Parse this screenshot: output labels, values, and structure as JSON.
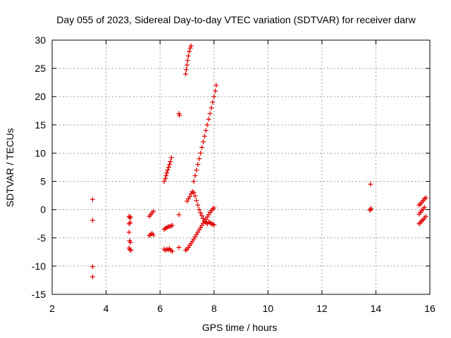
{
  "chart_data": {
    "type": "scatter",
    "title": "Day 055 of 2023, Sidereal Day-to-day VTEC variation (SDTVAR) for receiver darw",
    "xlabel": "GPS time / hours",
    "ylabel": "SDTVAR / TECUs",
    "xlim": [
      2,
      16
    ],
    "ylim": [
      -15,
      30
    ],
    "xticks": [
      2,
      4,
      6,
      8,
      10,
      12,
      14,
      16
    ],
    "yticks": [
      -15,
      -10,
      -5,
      0,
      5,
      10,
      15,
      20,
      25,
      30
    ],
    "grid": true,
    "marker": "plus",
    "marker_color": "#e00000",
    "series": [
      {
        "name": "SDTVAR",
        "points": [
          [
            3.5,
            1.8
          ],
          [
            3.5,
            -1.9
          ],
          [
            3.5,
            -10.1
          ],
          [
            3.5,
            -11.9
          ],
          [
            4.85,
            -1.2
          ],
          [
            4.88,
            -1.5
          ],
          [
            4.9,
            -1.3
          ],
          [
            4.85,
            -2.5
          ],
          [
            4.9,
            -2.3
          ],
          [
            4.85,
            -4.0
          ],
          [
            4.87,
            -5.5
          ],
          [
            4.9,
            -5.8
          ],
          [
            4.85,
            -6.8
          ],
          [
            4.88,
            -7.1
          ],
          [
            4.92,
            -7.2
          ],
          [
            5.6,
            -1.2
          ],
          [
            5.65,
            -0.9
          ],
          [
            5.7,
            -0.6
          ],
          [
            5.75,
            -0.3
          ],
          [
            5.6,
            -4.6
          ],
          [
            5.65,
            -4.4
          ],
          [
            5.7,
            -4.2
          ],
          [
            5.75,
            -4.5
          ],
          [
            6.15,
            5.0
          ],
          [
            6.2,
            5.5
          ],
          [
            6.22,
            6.0
          ],
          [
            6.25,
            6.5
          ],
          [
            6.28,
            7.0
          ],
          [
            6.32,
            7.5
          ],
          [
            6.35,
            8.0
          ],
          [
            6.38,
            8.5
          ],
          [
            6.42,
            9.2
          ],
          [
            6.15,
            -3.5
          ],
          [
            6.2,
            -3.3
          ],
          [
            6.25,
            -3.2
          ],
          [
            6.3,
            -3.0
          ],
          [
            6.35,
            -3.0
          ],
          [
            6.4,
            -2.9
          ],
          [
            6.45,
            -2.8
          ],
          [
            6.15,
            -7.0
          ],
          [
            6.2,
            -7.2
          ],
          [
            6.25,
            -7.0
          ],
          [
            6.3,
            -7.1
          ],
          [
            6.35,
            -6.9
          ],
          [
            6.4,
            -7.2
          ],
          [
            6.45,
            -7.4
          ],
          [
            6.7,
            17.0
          ],
          [
            6.72,
            16.7
          ],
          [
            6.7,
            -0.9
          ],
          [
            6.7,
            -6.7
          ],
          [
            6.95,
            24.0
          ],
          [
            6.97,
            24.8
          ],
          [
            7.0,
            25.6
          ],
          [
            7.02,
            26.4
          ],
          [
            7.05,
            27.2
          ],
          [
            7.08,
            28.0
          ],
          [
            7.12,
            28.6
          ],
          [
            7.15,
            29.0
          ],
          [
            6.95,
            -7.2
          ],
          [
            7.0,
            -7.0
          ],
          [
            7.05,
            -6.7
          ],
          [
            7.1,
            -6.3
          ],
          [
            7.15,
            -6.0
          ],
          [
            7.2,
            -5.6
          ],
          [
            7.25,
            -5.2
          ],
          [
            7.3,
            -4.8
          ],
          [
            7.35,
            -4.4
          ],
          [
            7.4,
            -4.0
          ],
          [
            7.45,
            -3.6
          ],
          [
            7.5,
            -3.2
          ],
          [
            7.55,
            -2.8
          ],
          [
            7.6,
            -2.4
          ],
          [
            7.65,
            -2.1
          ],
          [
            7.7,
            -1.7
          ],
          [
            7.75,
            -1.3
          ],
          [
            7.8,
            -0.9
          ],
          [
            7.85,
            -0.5
          ],
          [
            7.9,
            -0.2
          ],
          [
            7.95,
            0.1
          ],
          [
            8.0,
            0.3
          ],
          [
            7.0,
            1.5
          ],
          [
            7.05,
            1.9
          ],
          [
            7.1,
            2.3
          ],
          [
            7.15,
            2.8
          ],
          [
            7.2,
            3.2
          ],
          [
            7.25,
            3.0
          ],
          [
            7.3,
            2.4
          ],
          [
            7.35,
            1.6
          ],
          [
            7.4,
            0.8
          ],
          [
            7.45,
            0.0
          ],
          [
            7.5,
            -0.6
          ],
          [
            7.55,
            -1.1
          ],
          [
            7.6,
            -1.6
          ],
          [
            7.65,
            -2.0
          ],
          [
            7.7,
            -2.3
          ],
          [
            7.75,
            -2.5
          ],
          [
            7.8,
            -2.2
          ],
          [
            7.85,
            -2.3
          ],
          [
            7.9,
            -2.5
          ],
          [
            7.95,
            -2.6
          ],
          [
            8.0,
            -2.7
          ],
          [
            7.25,
            5.0
          ],
          [
            7.3,
            6.0
          ],
          [
            7.35,
            7.0
          ],
          [
            7.4,
            8.0
          ],
          [
            7.45,
            9.0
          ],
          [
            7.5,
            10.0
          ],
          [
            7.55,
            11.0
          ],
          [
            7.6,
            12.0
          ],
          [
            7.65,
            13.0
          ],
          [
            7.7,
            14.0
          ],
          [
            7.75,
            15.0
          ],
          [
            7.8,
            16.0
          ],
          [
            7.85,
            17.0
          ],
          [
            7.9,
            18.0
          ],
          [
            7.95,
            19.0
          ],
          [
            8.0,
            20.0
          ],
          [
            8.05,
            21.0
          ],
          [
            8.08,
            22.0
          ],
          [
            13.8,
            4.5
          ],
          [
            13.8,
            0.0
          ],
          [
            13.82,
            0.2
          ],
          [
            13.78,
            -0.1
          ],
          [
            15.6,
            0.8
          ],
          [
            15.65,
            1.0
          ],
          [
            15.7,
            1.3
          ],
          [
            15.75,
            1.6
          ],
          [
            15.8,
            1.9
          ],
          [
            15.85,
            2.1
          ],
          [
            15.6,
            -0.8
          ],
          [
            15.65,
            -0.5
          ],
          [
            15.7,
            -0.2
          ],
          [
            15.75,
            0.1
          ],
          [
            15.8,
            0.4
          ],
          [
            15.6,
            -2.5
          ],
          [
            15.65,
            -2.3
          ],
          [
            15.7,
            -2.0
          ],
          [
            15.75,
            -1.8
          ],
          [
            15.8,
            -1.5
          ],
          [
            15.85,
            -1.2
          ]
        ]
      }
    ]
  }
}
